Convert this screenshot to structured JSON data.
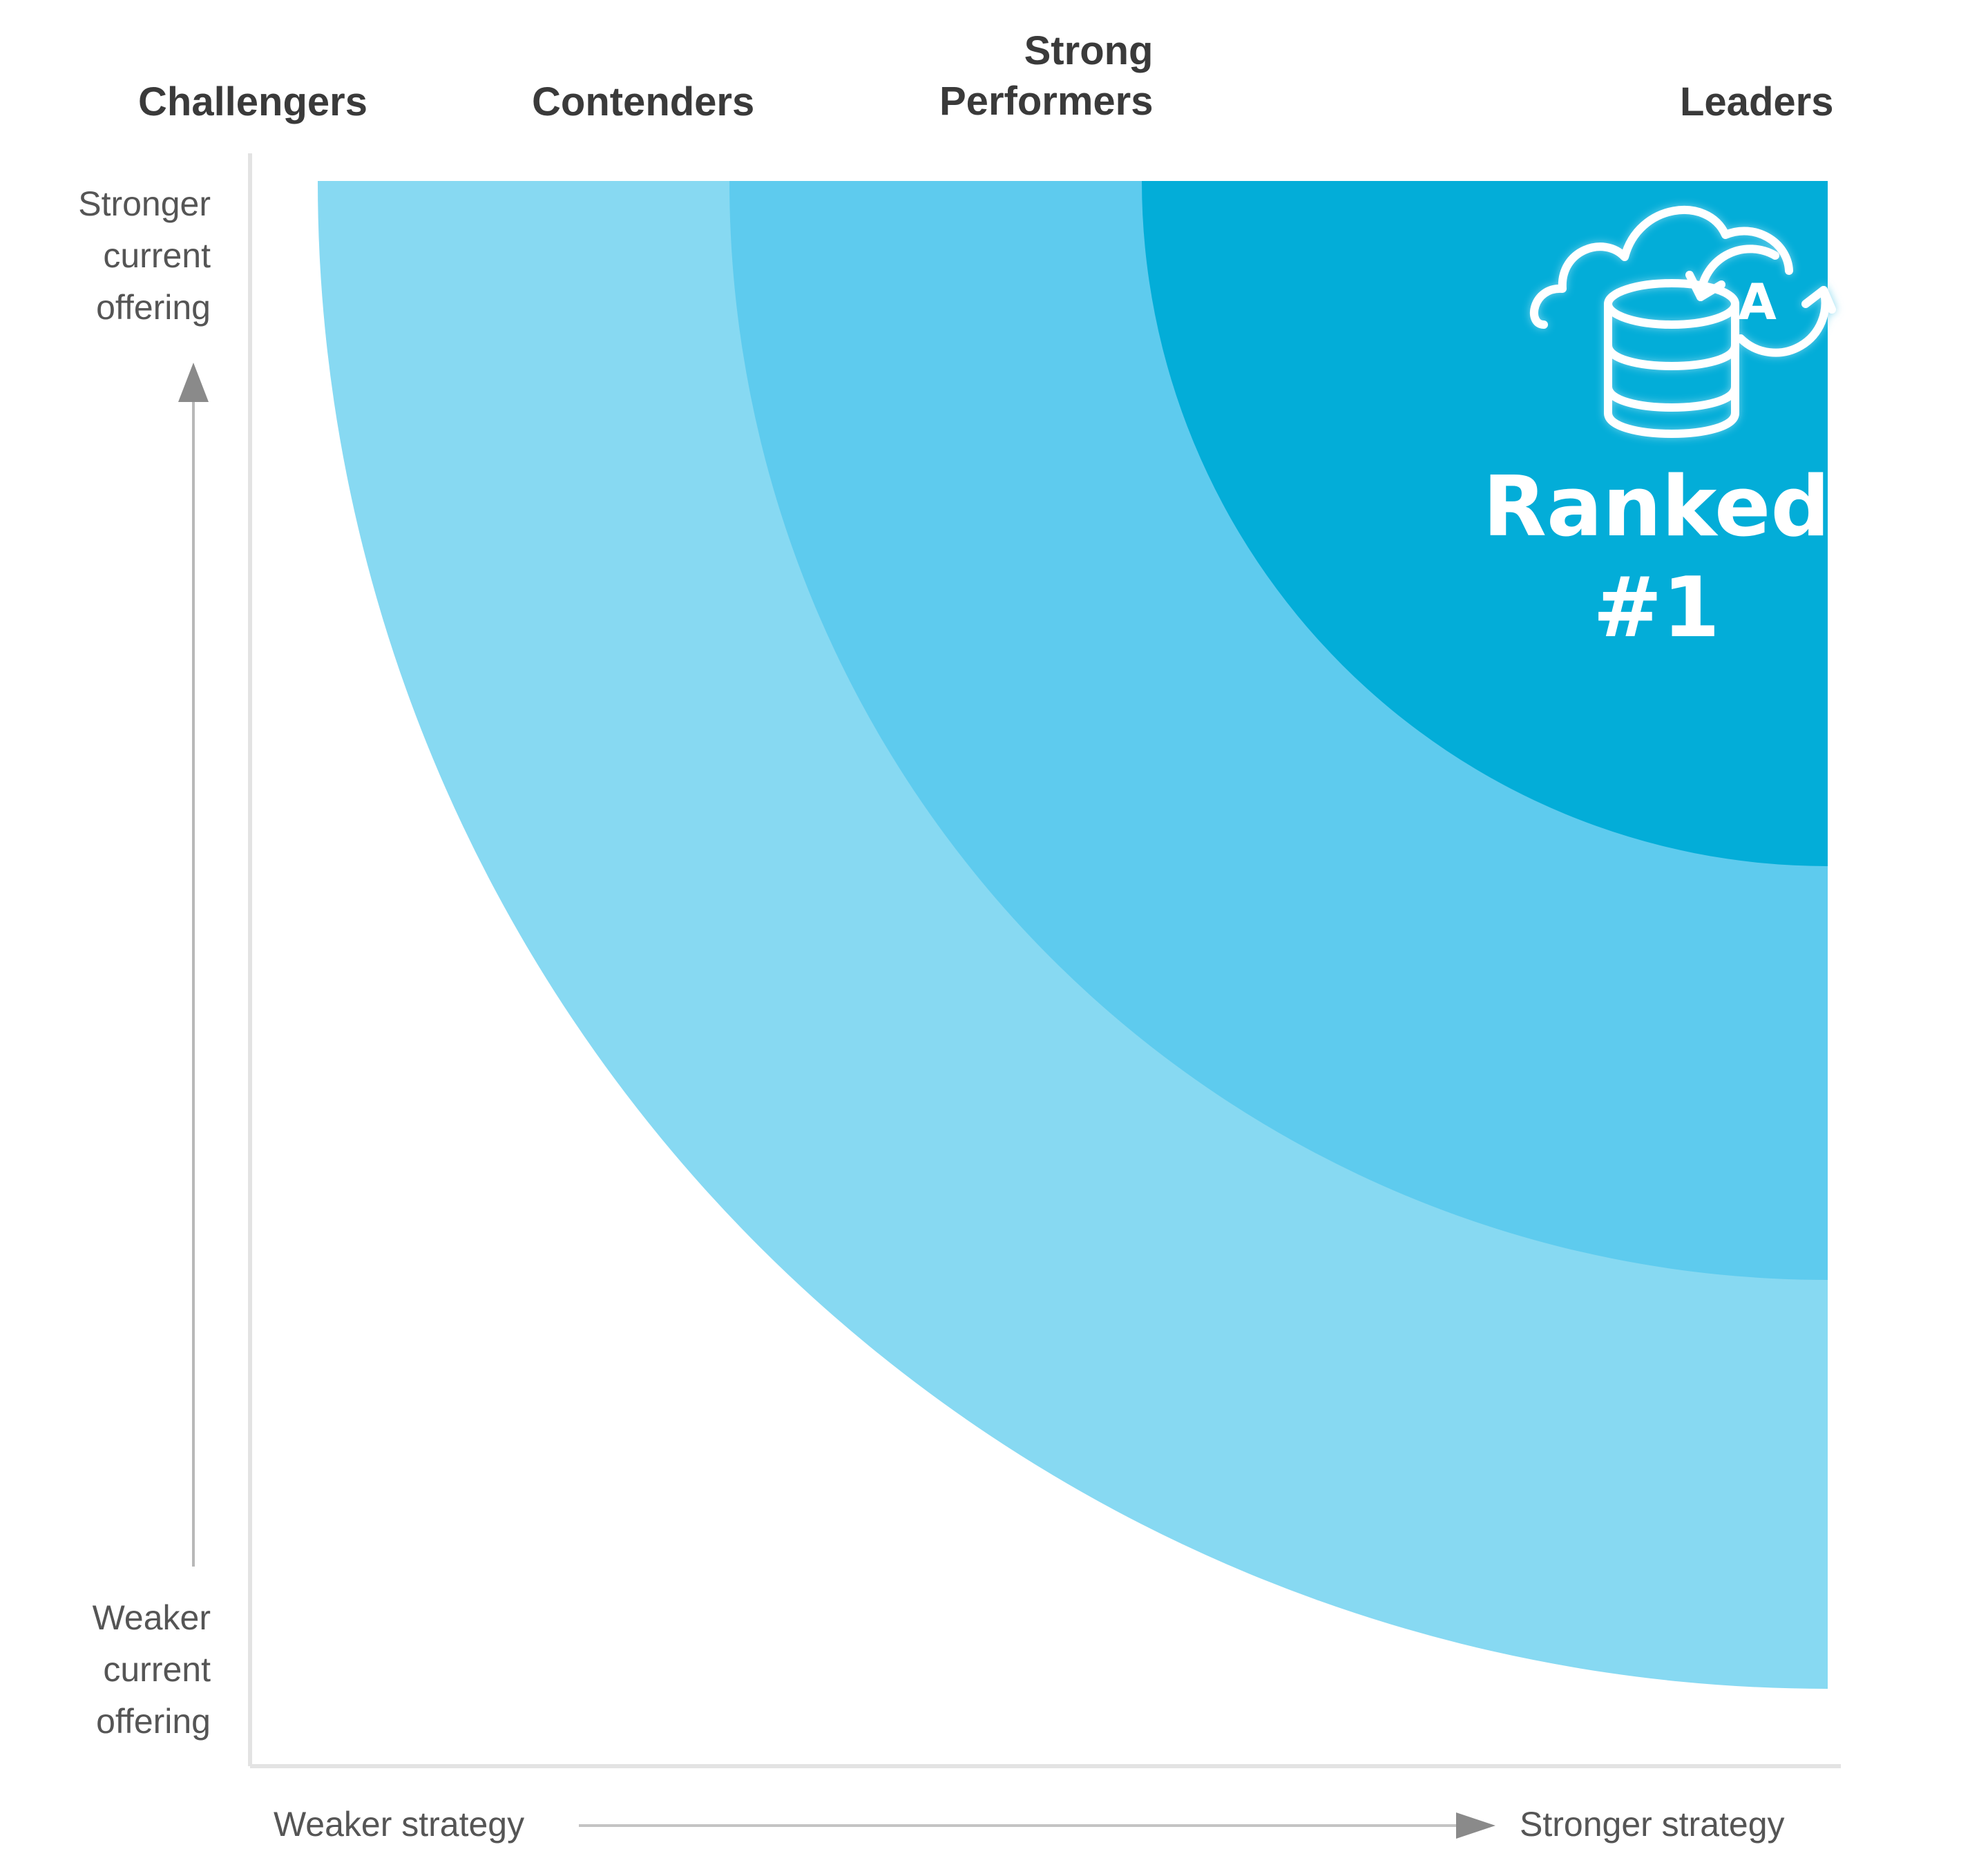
{
  "categories": {
    "challengers": "Challengers",
    "contenders": "Contenders",
    "strong_performers_line1": "Strong",
    "strong_performers_line2": "Performers",
    "leaders": "Leaders"
  },
  "y_axis": {
    "top_line1": "Stronger",
    "top_line2": "current",
    "top_line3": "offering",
    "bottom_line1": "Weaker",
    "bottom_line2": "current",
    "bottom_line3": "offering"
  },
  "x_axis": {
    "left": "Weaker strategy",
    "right": "Stronger strategy"
  },
  "badge": {
    "line1": "Ranked",
    "line2": "#1",
    "icon": "cloud-database-sync-icon",
    "icon_letter": "A"
  },
  "colors": {
    "leaders_zone": "#03ADD8",
    "strong_performers_zone": "#5ECBEE",
    "contenders_zone": "#87D9F2",
    "axis": "#a0a0a0",
    "text_dark": "#3a3a3a",
    "text_light": "#555555"
  }
}
